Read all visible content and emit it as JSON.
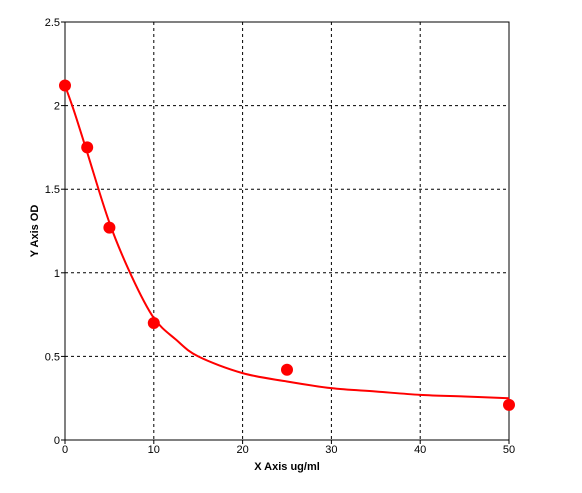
{
  "chart_data": {
    "type": "scatter",
    "xlabel": "X Axis ug/ml",
    "ylabel": "Y Axis OD",
    "xlim": [
      0,
      50
    ],
    "xticks": [
      0,
      10,
      20,
      30,
      40,
      50
    ],
    "ylim": [
      0,
      2.5
    ],
    "yticks": [
      0,
      0.5,
      1,
      1.5,
      2,
      2.5
    ],
    "grid": true,
    "series": [
      {
        "color": "#ff0000",
        "x": [
          0,
          2.5,
          5,
          10,
          25,
          50
        ],
        "values": [
          2.12,
          1.75,
          1.27,
          0.7,
          0.42,
          0.21
        ]
      },
      {
        "type": "line",
        "color": "#ff0000",
        "x": [
          0,
          1,
          2.5,
          5,
          7.5,
          10,
          12.5,
          15,
          20,
          25,
          30,
          35,
          40,
          45,
          50
        ],
        "values": [
          2.12,
          1.97,
          1.72,
          1.3,
          0.98,
          0.73,
          0.6,
          0.5,
          0.4,
          0.35,
          0.31,
          0.29,
          0.27,
          0.26,
          0.25
        ]
      }
    ]
  }
}
